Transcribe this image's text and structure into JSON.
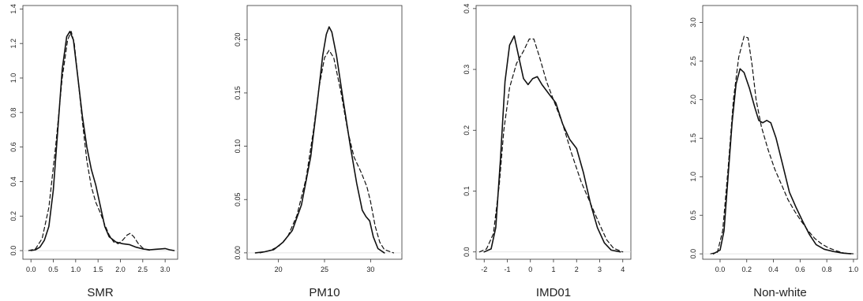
{
  "chart_data": [
    {
      "type": "line",
      "xlabel": "SMR",
      "ylabel": "",
      "xlim": [
        -0.18,
        3.28
      ],
      "ylim": [
        -0.05,
        1.42
      ],
      "xticks": [
        "0.0",
        "0.5",
        "1.0",
        "1.5",
        "2.0",
        "2.5",
        "3.0"
      ],
      "xtick_values": [
        0,
        0.5,
        1,
        1.5,
        2,
        2.5,
        3
      ],
      "yticks": [
        "0.0",
        "0.2",
        "0.4",
        "0.6",
        "0.8",
        "1.0",
        "1.2",
        "1.4"
      ],
      "ytick_values": [
        0,
        0.2,
        0.4,
        0.6,
        0.8,
        1.0,
        1.2,
        1.4
      ],
      "series": [
        {
          "style": "solid",
          "points": [
            [
              0.0,
              0.0
            ],
            [
              0.1,
              0.005
            ],
            [
              0.2,
              0.02
            ],
            [
              0.3,
              0.06
            ],
            [
              0.4,
              0.14
            ],
            [
              0.5,
              0.35
            ],
            [
              0.6,
              0.7
            ],
            [
              0.7,
              1.05
            ],
            [
              0.8,
              1.24
            ],
            [
              0.87,
              1.27
            ],
            [
              0.95,
              1.22
            ],
            [
              1.05,
              1.0
            ],
            [
              1.15,
              0.78
            ],
            [
              1.25,
              0.6
            ],
            [
              1.35,
              0.47
            ],
            [
              1.45,
              0.38
            ],
            [
              1.55,
              0.26
            ],
            [
              1.65,
              0.14
            ],
            [
              1.75,
              0.08
            ],
            [
              1.9,
              0.05
            ],
            [
              2.05,
              0.04
            ],
            [
              2.2,
              0.035
            ],
            [
              2.35,
              0.02
            ],
            [
              2.5,
              0.01
            ],
            [
              2.65,
              0.005
            ],
            [
              2.8,
              0.008
            ],
            [
              2.9,
              0.01
            ],
            [
              3.0,
              0.012
            ],
            [
              3.1,
              0.005
            ],
            [
              3.2,
              0.0
            ]
          ]
        },
        {
          "style": "dashed",
          "points": [
            [
              -0.05,
              0.0
            ],
            [
              0.1,
              0.01
            ],
            [
              0.25,
              0.07
            ],
            [
              0.4,
              0.25
            ],
            [
              0.55,
              0.6
            ],
            [
              0.7,
              1.0
            ],
            [
              0.82,
              1.22
            ],
            [
              0.9,
              1.27
            ],
            [
              0.97,
              1.2
            ],
            [
              1.05,
              1.0
            ],
            [
              1.15,
              0.75
            ],
            [
              1.25,
              0.52
            ],
            [
              1.35,
              0.37
            ],
            [
              1.45,
              0.28
            ],
            [
              1.55,
              0.22
            ],
            [
              1.65,
              0.15
            ],
            [
              1.75,
              0.09
            ],
            [
              1.85,
              0.05
            ],
            [
              1.95,
              0.04
            ],
            [
              2.05,
              0.06
            ],
            [
              2.15,
              0.09
            ],
            [
              2.22,
              0.1
            ],
            [
              2.3,
              0.08
            ],
            [
              2.4,
              0.04
            ],
            [
              2.5,
              0.015
            ],
            [
              2.6,
              0.005
            ],
            [
              2.7,
              0.0
            ]
          ]
        }
      ]
    },
    {
      "type": "line",
      "xlabel": "PM10",
      "ylabel": "",
      "xlim": [
        16.6,
        33.4
      ],
      "ylim": [
        -0.006,
        0.232
      ],
      "xticks": [
        "20",
        "25",
        "30"
      ],
      "xtick_values": [
        20,
        25,
        30
      ],
      "yticks": [
        "0.00",
        "0.05",
        "0.10",
        "0.15",
        "0.20"
      ],
      "ytick_values": [
        0,
        0.05,
        0.1,
        0.15,
        0.2
      ],
      "series": [
        {
          "style": "solid",
          "points": [
            [
              17.5,
              0.0
            ],
            [
              18.5,
              0.001
            ],
            [
              19.5,
              0.003
            ],
            [
              20.5,
              0.01
            ],
            [
              21.5,
              0.021
            ],
            [
              22.5,
              0.045
            ],
            [
              23.5,
              0.09
            ],
            [
              24.2,
              0.14
            ],
            [
              24.8,
              0.185
            ],
            [
              25.2,
              0.205
            ],
            [
              25.5,
              0.212
            ],
            [
              25.8,
              0.207
            ],
            [
              26.3,
              0.185
            ],
            [
              27,
              0.145
            ],
            [
              27.8,
              0.1
            ],
            [
              28.5,
              0.065
            ],
            [
              29.1,
              0.04
            ],
            [
              29.5,
              0.034
            ],
            [
              29.9,
              0.03
            ],
            [
              30.3,
              0.015
            ],
            [
              30.8,
              0.004
            ],
            [
              31.5,
              0.0
            ]
          ]
        },
        {
          "style": "dashed",
          "points": [
            [
              18.0,
              0.0
            ],
            [
              19,
              0.002
            ],
            [
              20,
              0.006
            ],
            [
              21,
              0.015
            ],
            [
              22,
              0.035
            ],
            [
              23,
              0.07
            ],
            [
              23.8,
              0.115
            ],
            [
              24.4,
              0.155
            ],
            [
              25,
              0.183
            ],
            [
              25.5,
              0.19
            ],
            [
              26,
              0.183
            ],
            [
              26.8,
              0.15
            ],
            [
              27.5,
              0.115
            ],
            [
              28.2,
              0.09
            ],
            [
              29,
              0.075
            ],
            [
              29.6,
              0.062
            ],
            [
              30,
              0.048
            ],
            [
              30.5,
              0.025
            ],
            [
              31,
              0.01
            ],
            [
              31.5,
              0.003
            ],
            [
              32.5,
              0.0
            ]
          ]
        }
      ]
    },
    {
      "type": "line",
      "xlabel": "IMD01",
      "ylabel": "",
      "xlim": [
        -2.35,
        4.35
      ],
      "ylim": [
        -0.012,
        0.405
      ],
      "xticks": [
        "-2",
        "-1",
        "0",
        "1",
        "2",
        "3",
        "4"
      ],
      "xtick_values": [
        -2,
        -1,
        0,
        1,
        2,
        3,
        4
      ],
      "yticks": [
        "0.0",
        "0.1",
        "0.2",
        "0.3",
        "0.4"
      ],
      "ytick_values": [
        0,
        0.1,
        0.2,
        0.3,
        0.4
      ],
      "series": [
        {
          "style": "solid",
          "points": [
            [
              -2.0,
              0.0
            ],
            [
              -1.7,
              0.005
            ],
            [
              -1.5,
              0.04
            ],
            [
              -1.3,
              0.15
            ],
            [
              -1.1,
              0.28
            ],
            [
              -0.9,
              0.34
            ],
            [
              -0.7,
              0.355
            ],
            [
              -0.5,
              0.32
            ],
            [
              -0.3,
              0.285
            ],
            [
              -0.1,
              0.275
            ],
            [
              0.1,
              0.285
            ],
            [
              0.3,
              0.288
            ],
            [
              0.5,
              0.275
            ],
            [
              0.8,
              0.26
            ],
            [
              1.1,
              0.245
            ],
            [
              1.4,
              0.21
            ],
            [
              1.7,
              0.185
            ],
            [
              2.0,
              0.17
            ],
            [
              2.3,
              0.13
            ],
            [
              2.6,
              0.08
            ],
            [
              2.9,
              0.04
            ],
            [
              3.2,
              0.015
            ],
            [
              3.5,
              0.003
            ],
            [
              3.9,
              0.0
            ]
          ]
        },
        {
          "style": "dashed",
          "points": [
            [
              -2.2,
              0.0
            ],
            [
              -1.9,
              0.005
            ],
            [
              -1.6,
              0.03
            ],
            [
              -1.35,
              0.11
            ],
            [
              -1.15,
              0.2
            ],
            [
              -0.9,
              0.27
            ],
            [
              -0.6,
              0.31
            ],
            [
              -0.3,
              0.33
            ],
            [
              -0.05,
              0.35
            ],
            [
              0.15,
              0.35
            ],
            [
              0.4,
              0.32
            ],
            [
              0.7,
              0.28
            ],
            [
              1.0,
              0.25
            ],
            [
              1.4,
              0.21
            ],
            [
              1.8,
              0.16
            ],
            [
              2.2,
              0.115
            ],
            [
              2.6,
              0.08
            ],
            [
              3.0,
              0.045
            ],
            [
              3.3,
              0.02
            ],
            [
              3.6,
              0.006
            ],
            [
              4.0,
              0.0
            ]
          ]
        }
      ]
    },
    {
      "type": "line",
      "xlabel": "Non-white",
      "ylabel": "",
      "xlim": [
        -0.13,
        1.03
      ],
      "ylim": [
        -0.07,
        3.22
      ],
      "xticks": [
        "0.0",
        "0.2",
        "0.4",
        "0.6",
        "0.8",
        "1.0"
      ],
      "xtick_values": [
        0,
        0.2,
        0.4,
        0.6,
        0.8,
        1.0
      ],
      "yticks": [
        "0.0",
        "0.5",
        "1.0",
        "1.5",
        "2.0",
        "2.5",
        "3.0"
      ],
      "ytick_values": [
        0,
        0.5,
        1.0,
        1.5,
        2.0,
        2.5,
        3.0
      ],
      "series": [
        {
          "style": "solid",
          "points": [
            [
              -0.05,
              0.0
            ],
            [
              0.0,
              0.05
            ],
            [
              0.03,
              0.3
            ],
            [
              0.06,
              1.0
            ],
            [
              0.09,
              1.7
            ],
            [
              0.12,
              2.2
            ],
            [
              0.15,
              2.4
            ],
            [
              0.18,
              2.35
            ],
            [
              0.22,
              2.15
            ],
            [
              0.26,
              1.9
            ],
            [
              0.29,
              1.73
            ],
            [
              0.32,
              1.7
            ],
            [
              0.35,
              1.73
            ],
            [
              0.38,
              1.7
            ],
            [
              0.42,
              1.5
            ],
            [
              0.47,
              1.15
            ],
            [
              0.52,
              0.8
            ],
            [
              0.57,
              0.6
            ],
            [
              0.62,
              0.42
            ],
            [
              0.67,
              0.25
            ],
            [
              0.72,
              0.12
            ],
            [
              0.78,
              0.06
            ],
            [
              0.85,
              0.03
            ],
            [
              0.92,
              0.01
            ],
            [
              0.98,
              0.0
            ]
          ]
        },
        {
          "style": "dashed",
          "points": [
            [
              -0.07,
              0.0
            ],
            [
              -0.02,
              0.02
            ],
            [
              0.02,
              0.3
            ],
            [
              0.06,
              1.1
            ],
            [
              0.1,
              2.0
            ],
            [
              0.14,
              2.55
            ],
            [
              0.18,
              2.82
            ],
            [
              0.21,
              2.8
            ],
            [
              0.24,
              2.45
            ],
            [
              0.27,
              2.0
            ],
            [
              0.31,
              1.65
            ],
            [
              0.36,
              1.35
            ],
            [
              0.41,
              1.1
            ],
            [
              0.46,
              0.9
            ],
            [
              0.51,
              0.7
            ],
            [
              0.56,
              0.55
            ],
            [
              0.61,
              0.42
            ],
            [
              0.66,
              0.3
            ],
            [
              0.71,
              0.2
            ],
            [
              0.76,
              0.13
            ],
            [
              0.81,
              0.08
            ],
            [
              0.87,
              0.04
            ],
            [
              0.93,
              0.01
            ],
            [
              1.0,
              0.0
            ]
          ]
        }
      ]
    }
  ]
}
